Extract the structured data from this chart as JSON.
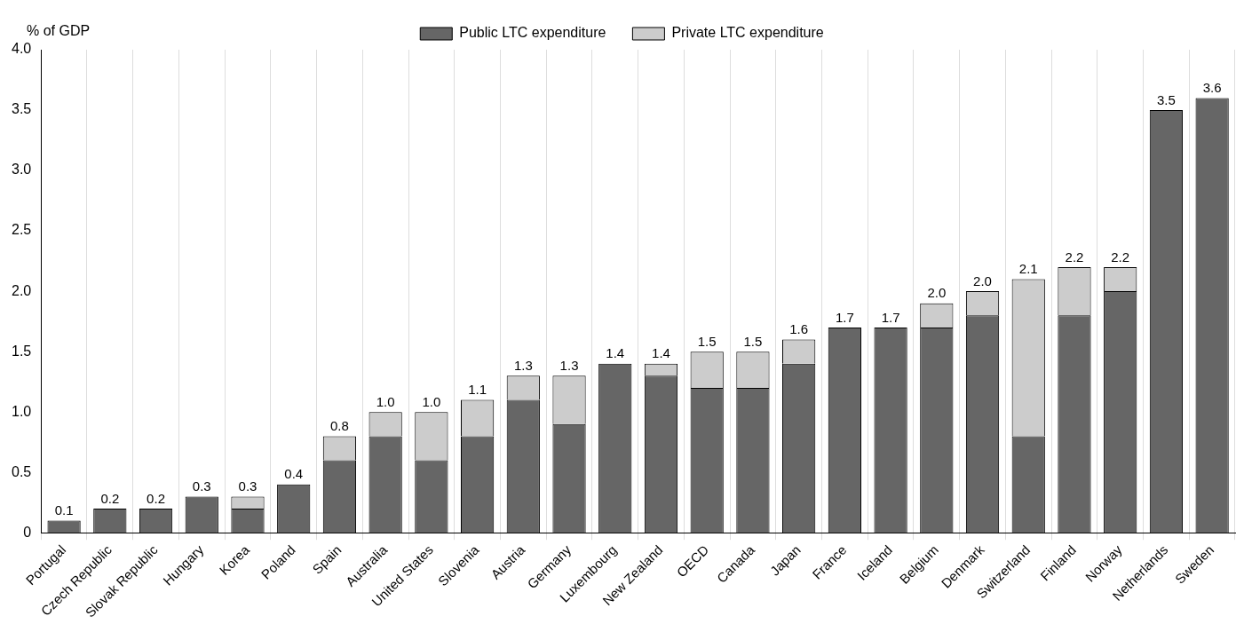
{
  "chart_data": {
    "type": "bar",
    "stacked": true,
    "ylabel": "% of GDP",
    "categories": [
      "Portugal",
      "Czech Republic",
      "Slovak Republic",
      "Hungary",
      "Korea",
      "Poland",
      "Spain",
      "Australia",
      "United States",
      "Slovenia",
      "Austria",
      "Germany",
      "Luxembourg",
      "New Zealand",
      "OECD",
      "Canada",
      "Japan",
      "France",
      "Iceland",
      "Belgium",
      "Denmark",
      "Switzerland",
      "Finland",
      "Norway",
      "Netherlands",
      "Sweden"
    ],
    "series": [
      {
        "name": "Public LTC expenditure",
        "color": "#666666",
        "values": [
          0.1,
          0.2,
          0.2,
          0.3,
          0.2,
          0.4,
          0.6,
          0.8,
          0.6,
          0.8,
          1.1,
          0.9,
          1.4,
          1.3,
          1.2,
          1.2,
          1.4,
          1.7,
          1.7,
          1.7,
          1.8,
          0.8,
          1.8,
          2.0,
          3.5,
          3.6
        ]
      },
      {
        "name": "Private LTC expenditure",
        "color": "#cccccc",
        "values": [
          0,
          0,
          0,
          0,
          0.1,
          0,
          0.2,
          0.2,
          0.4,
          0.3,
          0.2,
          0.4,
          0,
          0.1,
          0.3,
          0.3,
          0.2,
          0,
          0,
          0.2,
          0.2,
          1.3,
          0.4,
          0.2,
          0,
          0
        ]
      }
    ],
    "totals": [
      "0.1",
      "0.2",
      "0.2",
      "0.3",
      "0.3",
      "0.4",
      "0.8",
      "1.0",
      "1.0",
      "1.1",
      "1.3",
      "1.3",
      "1.4",
      "1.4",
      "1.5",
      "1.5",
      "1.6",
      "1.7",
      "1.7",
      "2.0",
      "2.0",
      "2.1",
      "2.2",
      "2.2",
      "3.5",
      "3.6"
    ],
    "ylim": [
      0,
      4
    ],
    "yticks": [
      0,
      0.5,
      {
        "value": 1,
        "label": "1.0"
      },
      1.5,
      {
        "value": 2,
        "label": "2.0"
      },
      2.5,
      {
        "value": 3,
        "label": "3.0"
      },
      3.5,
      {
        "value": 4,
        "label": "4.0"
      }
    ],
    "grid": "x",
    "legend": "top"
  }
}
